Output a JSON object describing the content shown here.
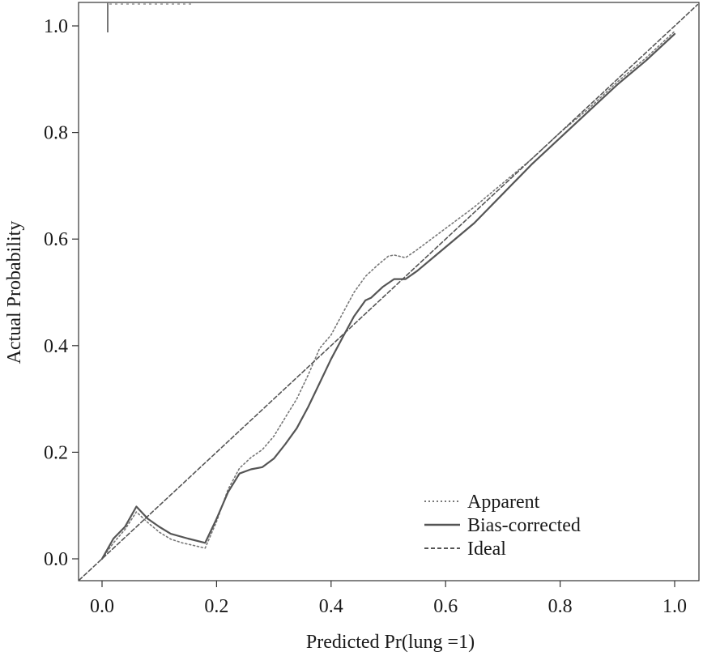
{
  "chart_data": {
    "type": "line",
    "title": "",
    "xlabel": "Predicted Pr(lung =1)",
    "ylabel": "Actual Probability",
    "xlim": [
      -0.04,
      1.04
    ],
    "ylim": [
      -0.04,
      1.04
    ],
    "x_ticks": [
      "0.0",
      "0.2",
      "0.4",
      "0.6",
      "0.8",
      "1.0"
    ],
    "y_ticks": [
      "0.0",
      "0.2",
      "0.4",
      "0.6",
      "0.8",
      "1.0"
    ],
    "grid": false,
    "legend_position": "bottom-right",
    "series": [
      {
        "name": "Apparent",
        "style": "dotted",
        "color": "#777777",
        "x": [
          0.0,
          0.02,
          0.04,
          0.06,
          0.08,
          0.1,
          0.12,
          0.14,
          0.16,
          0.18,
          0.2,
          0.22,
          0.24,
          0.26,
          0.28,
          0.3,
          0.32,
          0.34,
          0.36,
          0.38,
          0.4,
          0.42,
          0.44,
          0.46,
          0.48,
          0.5,
          0.51,
          0.53,
          0.55,
          0.6,
          0.65,
          0.7,
          0.75,
          0.8,
          0.85,
          0.9,
          0.95,
          1.0
        ],
        "y": [
          0.0,
          0.03,
          0.055,
          0.088,
          0.068,
          0.05,
          0.037,
          0.03,
          0.025,
          0.02,
          0.07,
          0.13,
          0.17,
          0.19,
          0.205,
          0.23,
          0.265,
          0.3,
          0.345,
          0.395,
          0.42,
          0.46,
          0.5,
          0.53,
          0.55,
          0.568,
          0.57,
          0.565,
          0.58,
          0.62,
          0.66,
          0.705,
          0.75,
          0.8,
          0.845,
          0.895,
          0.94,
          0.99
        ]
      },
      {
        "name": "Bias-corrected",
        "style": "solid",
        "color": "#555555",
        "x": [
          0.0,
          0.02,
          0.04,
          0.06,
          0.08,
          0.1,
          0.12,
          0.15,
          0.18,
          0.2,
          0.22,
          0.24,
          0.26,
          0.28,
          0.3,
          0.32,
          0.34,
          0.36,
          0.38,
          0.4,
          0.42,
          0.44,
          0.46,
          0.47,
          0.49,
          0.51,
          0.53,
          0.55,
          0.6,
          0.65,
          0.7,
          0.75,
          0.8,
          0.85,
          0.9,
          0.95,
          1.0
        ],
        "y": [
          0.0,
          0.038,
          0.06,
          0.098,
          0.075,
          0.06,
          0.047,
          0.038,
          0.03,
          0.075,
          0.125,
          0.16,
          0.168,
          0.172,
          0.188,
          0.215,
          0.245,
          0.285,
          0.33,
          0.375,
          0.415,
          0.455,
          0.485,
          0.49,
          0.51,
          0.525,
          0.525,
          0.54,
          0.585,
          0.63,
          0.685,
          0.74,
          0.79,
          0.84,
          0.89,
          0.935,
          0.985
        ]
      },
      {
        "name": "Ideal",
        "style": "dashed",
        "color": "#555555",
        "x": [
          -0.04,
          1.04
        ],
        "y": [
          -0.04,
          1.04
        ]
      }
    ]
  }
}
